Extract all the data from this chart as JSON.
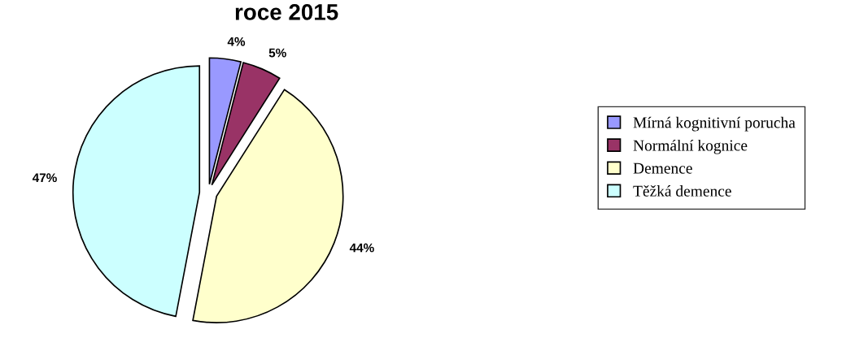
{
  "chart_data": {
    "type": "pie",
    "title": "roce 2015",
    "categories": [
      "Mírná kognitivní porucha",
      "Normální kognice",
      "Demence",
      "Těžká demence"
    ],
    "values": [
      4,
      5,
      44,
      47
    ],
    "colors": [
      "#9999ff",
      "#993366",
      "#ffffcc",
      "#ccffff"
    ],
    "value_labels": [
      "4%",
      "5%",
      "44%",
      "47%"
    ],
    "legend": "right"
  }
}
